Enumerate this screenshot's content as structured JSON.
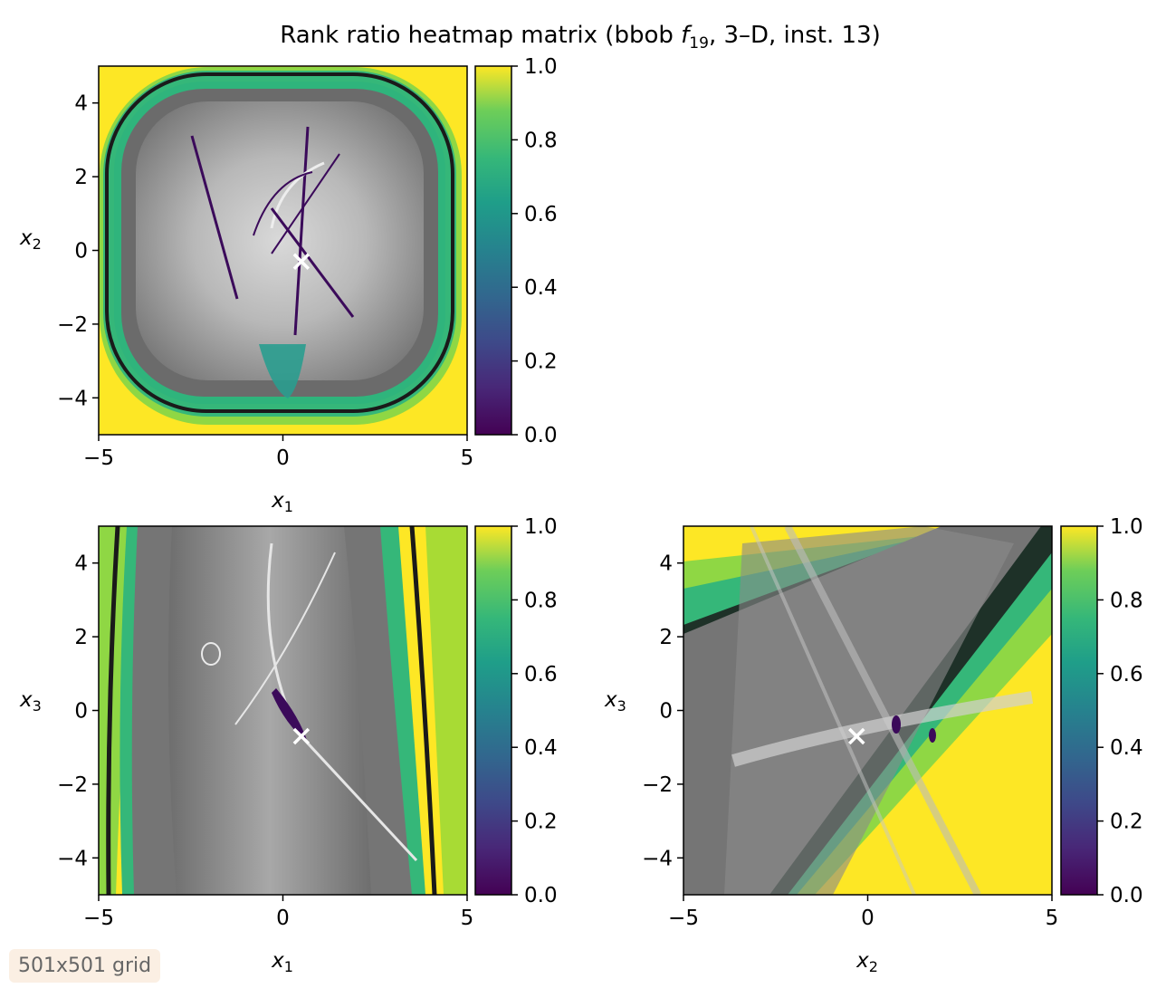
{
  "title": "Rank ratio heatmap matrix (bbob f19, 3–D, inst. 13)",
  "title_parts": {
    "pre": "Rank ratio heatmap matrix (bbob ",
    "f": "f",
    "sub": "19",
    "post": ", 3–D, inst. 13)"
  },
  "grid_note": "501x501 grid",
  "colorbar": {
    "colormap": "viridis",
    "range": [
      0.0,
      1.0
    ],
    "ticks": [
      "0.0",
      "0.2",
      "0.4",
      "0.6",
      "0.8",
      "1.0"
    ]
  },
  "colors": {
    "viridis_low": "#440154",
    "viridis_mid": "#21918c",
    "viridis_green": "#35b779",
    "viridis_high": "#fde725",
    "contour_dark": "#1a1a1a",
    "marker": "#ffffff",
    "badge_bg": "#fbefe3"
  },
  "chart_data": [
    {
      "type": "heatmap",
      "xlabel": "x1",
      "xlabel_base": "x",
      "xlabel_sub": "1",
      "ylabel": "x2",
      "ylabel_base": "x",
      "ylabel_sub": "2",
      "xlim": [
        -5,
        5
      ],
      "ylim": [
        -5,
        5
      ],
      "xticks": [
        "−5",
        "0",
        "5"
      ],
      "yticks": [
        "−4",
        "−2",
        "0",
        "2",
        "4"
      ],
      "optimum": {
        "x": 0.5,
        "y": -0.3
      },
      "grid_resolution": "501x501"
    },
    {
      "type": "heatmap",
      "xlabel": "x1",
      "xlabel_base": "x",
      "xlabel_sub": "1",
      "ylabel": "x3",
      "ylabel_base": "x",
      "ylabel_sub": "3",
      "xlim": [
        -5,
        5
      ],
      "ylim": [
        -5,
        5
      ],
      "xticks": [
        "−5",
        "0",
        "5"
      ],
      "yticks": [
        "−4",
        "−2",
        "0",
        "2",
        "4"
      ],
      "optimum": {
        "x": 0.5,
        "y": -0.7
      },
      "grid_resolution": "501x501"
    },
    {
      "type": "heatmap",
      "xlabel": "x2",
      "xlabel_base": "x",
      "xlabel_sub": "2",
      "ylabel": "x3",
      "ylabel_base": "x",
      "ylabel_sub": "3",
      "xlim": [
        -5,
        5
      ],
      "ylim": [
        -5,
        5
      ],
      "xticks": [
        "−5",
        "0",
        "5"
      ],
      "yticks": [
        "−4",
        "−2",
        "0",
        "2",
        "4"
      ],
      "optimum": {
        "x": -0.3,
        "y": -0.7
      },
      "grid_resolution": "501x501"
    }
  ]
}
